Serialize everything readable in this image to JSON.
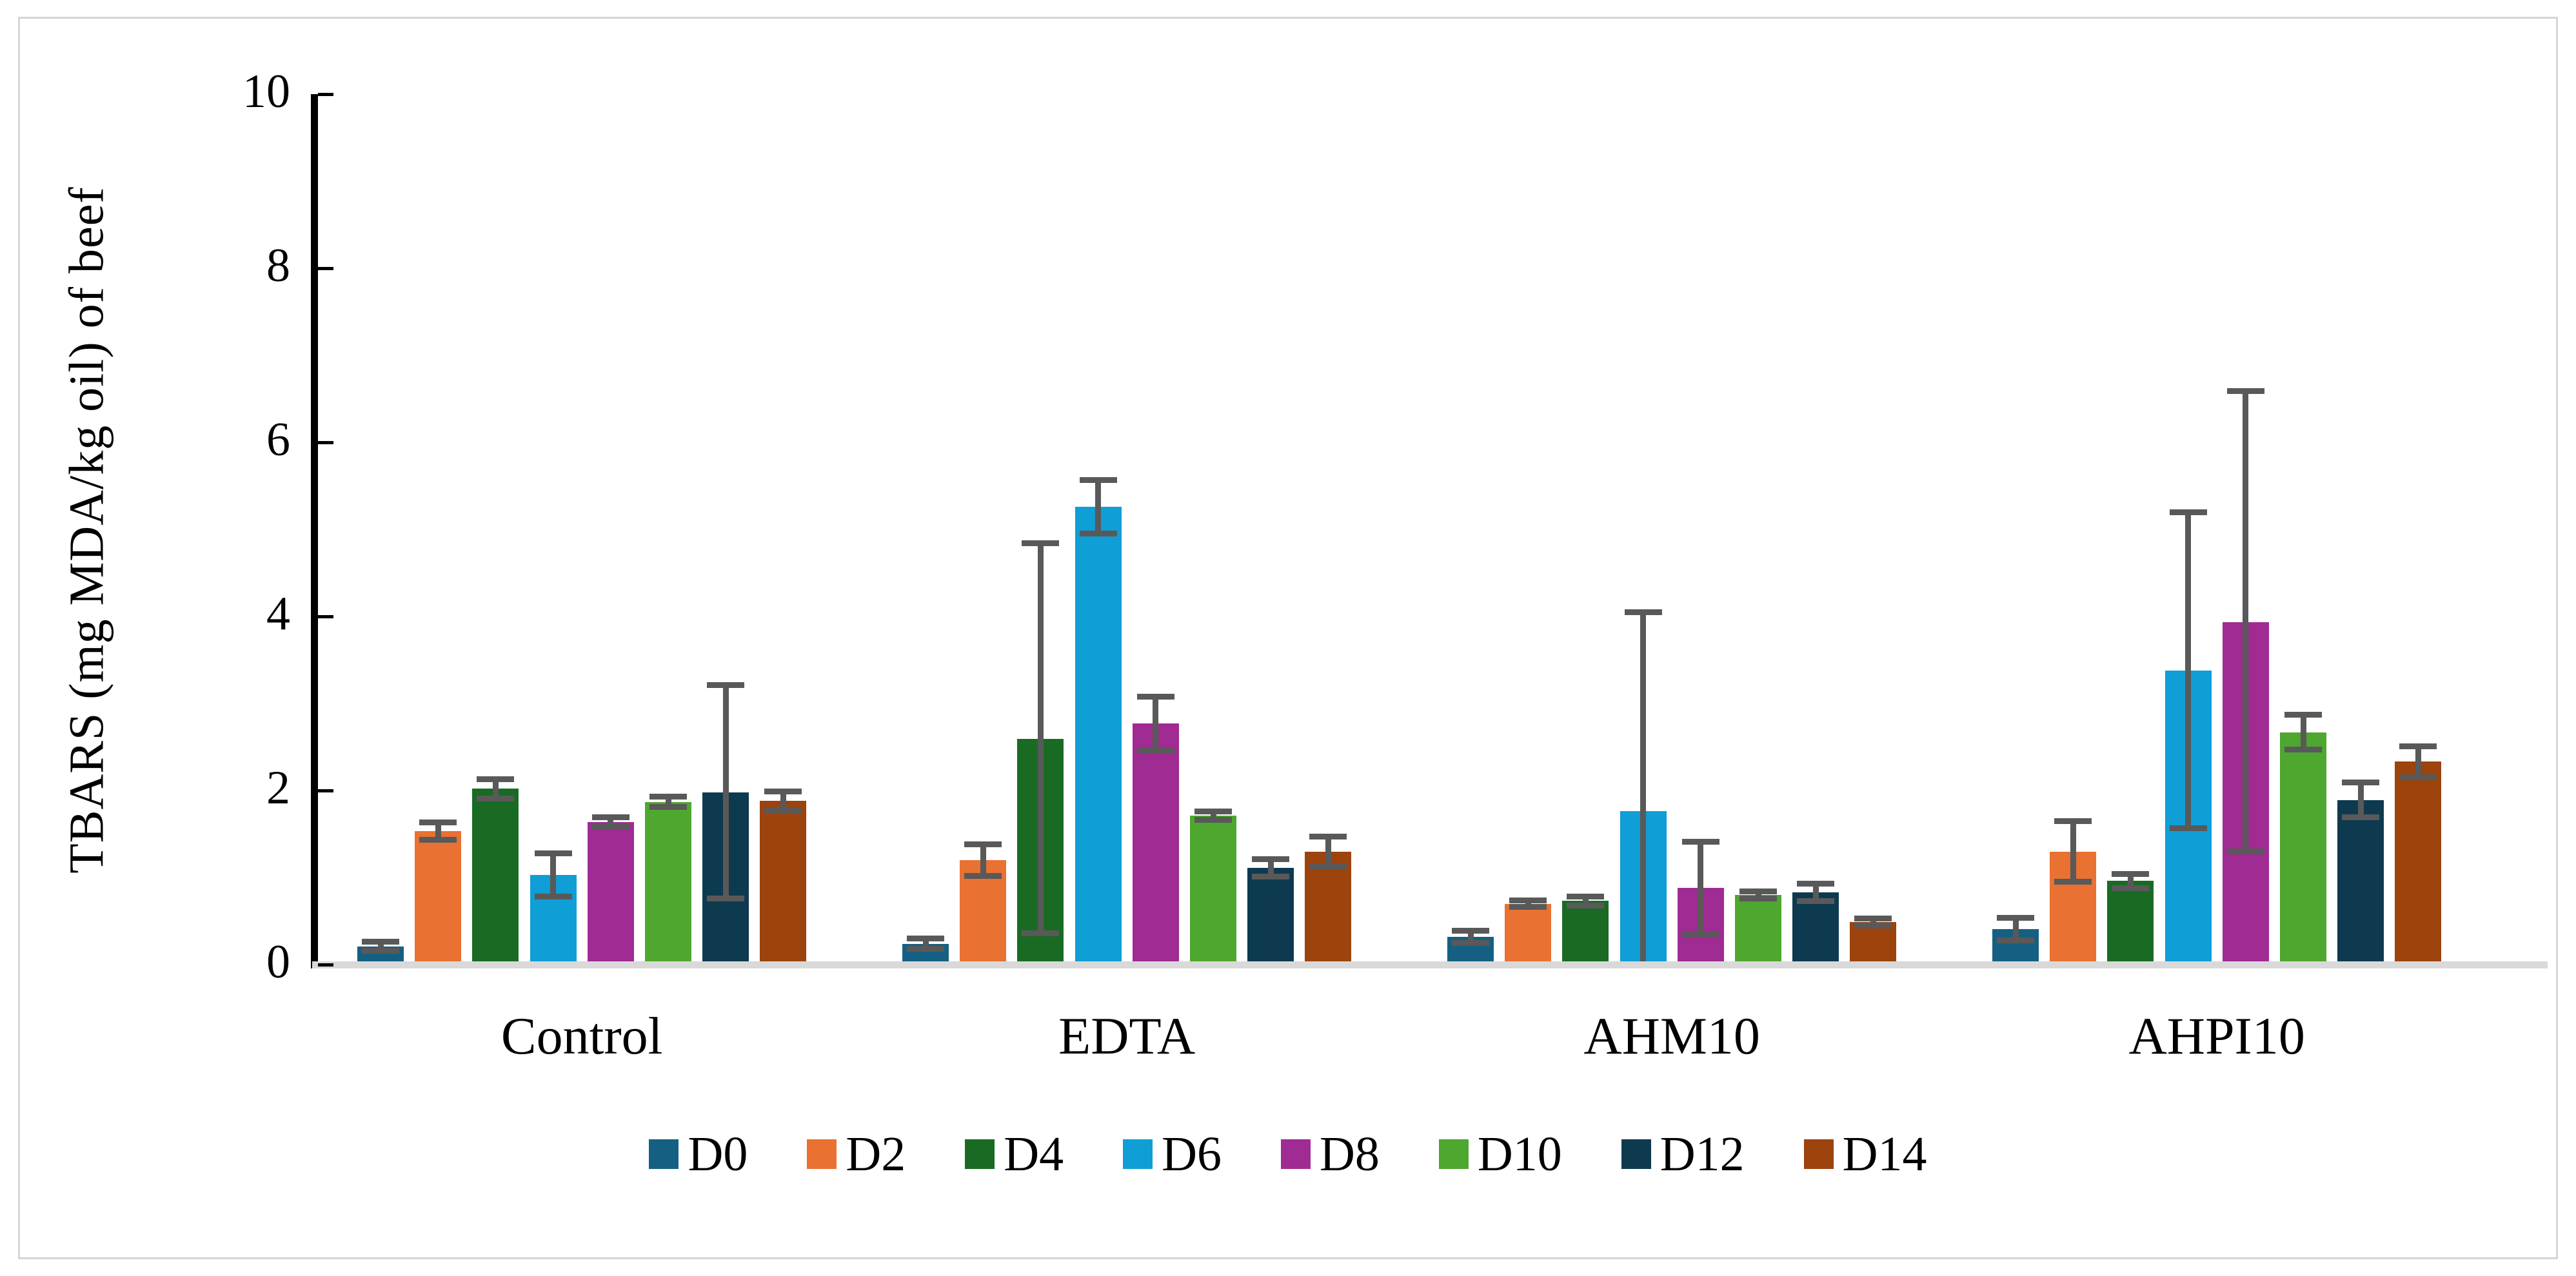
{
  "figure": {
    "background": "#FFFFFF",
    "border_color": "#D6D6D6"
  },
  "chart_data": {
    "type": "bar",
    "title": "",
    "xlabel": "",
    "ylabel": "TBARS (mg MDA/kg oil) of beef",
    "ylim": [
      0,
      10
    ],
    "yticks": [
      0,
      2,
      4,
      6,
      8,
      10
    ],
    "grid": false,
    "legend_position": "bottom",
    "axis_color": "#000000",
    "baseline_color": "#D9D9D9",
    "error_bar_color": "#595959",
    "categories": [
      "Control",
      "EDTA",
      "AHM10",
      "AHPI10"
    ],
    "series": [
      {
        "name": "D0",
        "color": "#156082",
        "values": [
          0.21,
          0.24,
          0.32,
          0.41
        ],
        "err_plus": [
          0.05,
          0.06,
          0.07,
          0.13
        ],
        "err_minus": [
          0.05,
          0.06,
          0.07,
          0.13
        ]
      },
      {
        "name": "D2",
        "color": "#E97132",
        "values": [
          1.53,
          1.2,
          0.7,
          1.3
        ],
        "err_plus": [
          0.1,
          0.18,
          0.04,
          0.35
        ],
        "err_minus": [
          0.1,
          0.18,
          0.04,
          0.35
        ]
      },
      {
        "name": "D4",
        "color": "#196B24",
        "values": [
          2.02,
          2.59,
          0.73,
          0.96
        ],
        "err_plus": [
          0.11,
          2.25,
          0.05,
          0.08
        ],
        "err_minus": [
          0.11,
          2.23,
          0.05,
          0.08
        ]
      },
      {
        "name": "D6",
        "color": "#0F9ED5",
        "values": [
          1.03,
          5.26,
          1.76,
          3.38
        ],
        "err_plus": [
          0.25,
          0.31,
          2.29,
          1.82
        ],
        "err_minus": [
          0.25,
          0.31,
          2.29,
          1.81
        ]
      },
      {
        "name": "D8",
        "color": "#A02B93",
        "values": [
          1.64,
          2.77,
          0.88,
          3.93
        ],
        "err_plus": [
          0.05,
          0.31,
          0.53,
          2.66
        ],
        "err_minus": [
          0.05,
          0.31,
          0.53,
          2.63
        ]
      },
      {
        "name": "D10",
        "color": "#4EA72E",
        "values": [
          1.87,
          1.71,
          0.8,
          2.67
        ],
        "err_plus": [
          0.06,
          0.05,
          0.04,
          0.2
        ],
        "err_minus": [
          0.06,
          0.05,
          0.04,
          0.2
        ]
      },
      {
        "name": "D12",
        "color": "#0E3A50",
        "values": [
          1.98,
          1.11,
          0.83,
          1.89
        ],
        "err_plus": [
          1.23,
          0.1,
          0.1,
          0.2
        ],
        "err_minus": [
          1.22,
          0.1,
          0.1,
          0.2
        ]
      },
      {
        "name": "D14",
        "color": "#9C430E",
        "values": [
          1.88,
          1.3,
          0.49,
          2.33
        ],
        "err_plus": [
          0.11,
          0.17,
          0.04,
          0.18
        ],
        "err_minus": [
          0.11,
          0.17,
          0.04,
          0.18
        ]
      }
    ]
  }
}
